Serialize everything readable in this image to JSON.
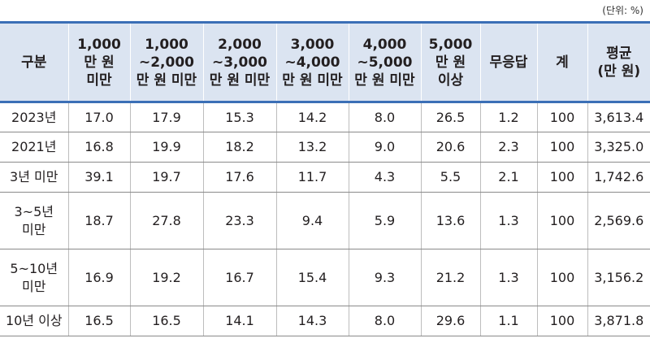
{
  "unit_label": "(단위: %)",
  "headers": [
    [
      "구분"
    ],
    [
      "1,000",
      "만 원",
      "미만"
    ],
    [
      "1,000",
      "~2,000",
      "만 원 미만"
    ],
    [
      "2,000",
      "~3,000",
      "만 원 미만"
    ],
    [
      "3,000",
      "~4,000",
      "만 원 미만"
    ],
    [
      "4,000",
      "~5,000",
      "만 원 미만"
    ],
    [
      "5,000",
      "만 원",
      "이상"
    ],
    [
      "무응답"
    ],
    [
      "계"
    ],
    [
      "평균",
      "(만 원)"
    ]
  ],
  "rows": [
    {
      "label": [
        "2023년"
      ],
      "values": [
        "17.0",
        "17.9",
        "15.3",
        "14.2",
        "8.0",
        "26.5",
        "1.2",
        "100",
        "3,613.4"
      ]
    },
    {
      "label": [
        "2021년"
      ],
      "values": [
        "16.8",
        "19.9",
        "18.2",
        "13.2",
        "9.0",
        "20.6",
        "2.3",
        "100",
        "3,325.0"
      ]
    },
    {
      "label": [
        "3년 미만"
      ],
      "values": [
        "39.1",
        "19.7",
        "17.6",
        "11.7",
        "4.3",
        "5.5",
        "2.1",
        "100",
        "1,742.6"
      ]
    },
    {
      "label": [
        "3~5년",
        "미만"
      ],
      "values": [
        "18.7",
        "27.8",
        "23.3",
        "9.4",
        "5.9",
        "13.6",
        "1.3",
        "100",
        "2,569.6"
      ]
    },
    {
      "label": [
        "5~10년",
        "미만"
      ],
      "values": [
        "16.9",
        "19.2",
        "16.7",
        "15.4",
        "9.3",
        "21.2",
        "1.3",
        "100",
        "3,156.2"
      ]
    },
    {
      "label": [
        "10년 이상"
      ],
      "values": [
        "16.5",
        "16.5",
        "14.1",
        "14.3",
        "8.0",
        "29.6",
        "1.1",
        "100",
        "3,871.8"
      ]
    }
  ]
}
